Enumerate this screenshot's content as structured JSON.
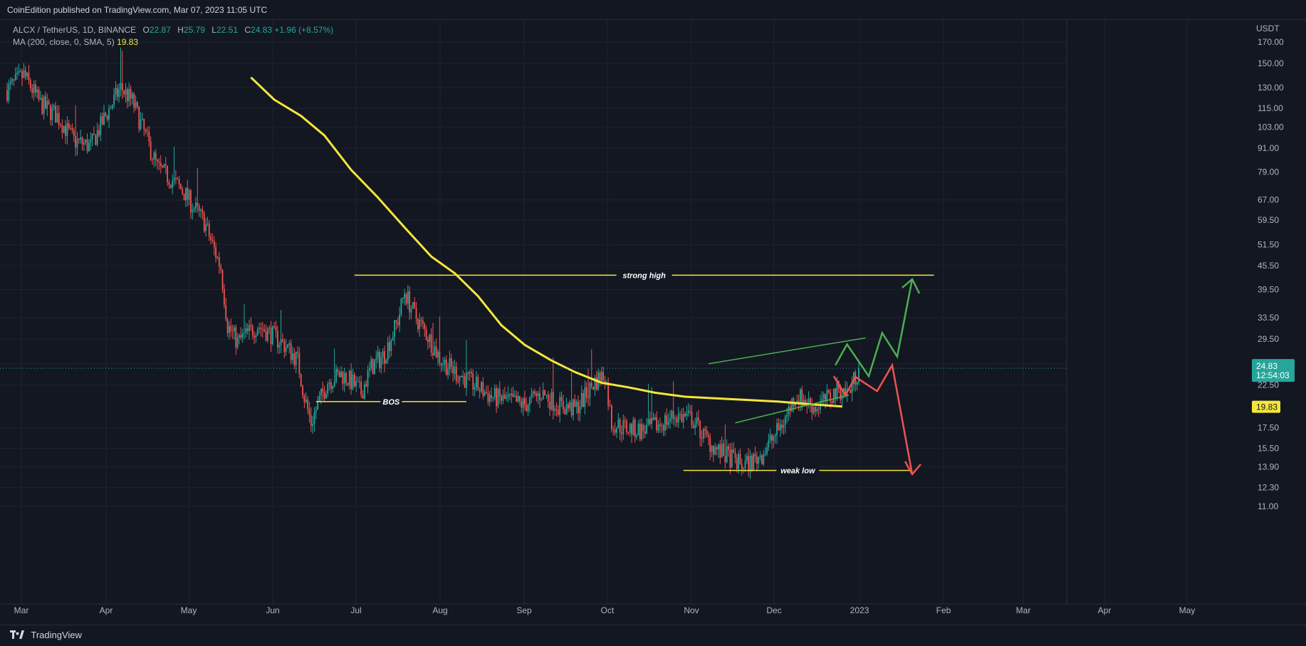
{
  "header": {
    "published": "CoinEdition published on TradingView.com, Mar 07, 2023 11:05 UTC"
  },
  "legend": {
    "symbol": "ALCX / TetherUS, 1D, BINANCE",
    "o_label": "O",
    "o": "22.87",
    "h_label": "H",
    "h": "25.79",
    "l_label": "L",
    "l": "22.51",
    "c_label": "C",
    "c": "24.83",
    "change": "+1.96 (+8.57%)",
    "ma_label": "MA (200, close, 0, SMA, 5)",
    "ma_value": "19.83"
  },
  "footer": {
    "brand": "TradingView"
  },
  "colors": {
    "background": "#131722",
    "up": "#26a69a",
    "down": "#ef5350",
    "ma": "#f5e63b",
    "level": "#f5e63b",
    "channel": "#4caf50",
    "arrow_up": "#4caf50",
    "arrow_down": "#ef5350"
  },
  "chart_data": {
    "type": "candlestick",
    "scale": "log",
    "y_unit": "USDT",
    "y_ticks": [
      170.0,
      150.0,
      130.0,
      115.0,
      103.0,
      91.0,
      79.0,
      67.0,
      59.5,
      51.5,
      45.5,
      39.5,
      33.5,
      29.5,
      25.5,
      22.5,
      17.5,
      15.5,
      13.9,
      12.3,
      11.0
    ],
    "x_ticks": [
      "Mar",
      "Apr",
      "May",
      "Jun",
      "Jul",
      "Aug",
      "Sep",
      "Oct",
      "Nov",
      "Dec",
      "2023",
      "Feb",
      "Mar",
      "Apr",
      "May"
    ],
    "last_price": "24.83",
    "countdown": "12:54:03",
    "ma_price": "19.83",
    "price_path": [
      [
        0,
        128
      ],
      [
        10,
        140
      ],
      [
        20,
        118
      ],
      [
        30,
        110
      ],
      [
        40,
        95
      ],
      [
        50,
        92
      ],
      [
        58,
        108
      ],
      [
        68,
        130
      ],
      [
        75,
        120
      ],
      [
        82,
        100
      ],
      [
        90,
        81
      ],
      [
        98,
        76
      ],
      [
        106,
        70
      ],
      [
        112,
        64
      ],
      [
        118,
        59
      ],
      [
        124,
        50
      ],
      [
        128,
        45
      ],
      [
        132,
        32
      ],
      [
        138,
        29
      ],
      [
        150,
        32
      ],
      [
        160,
        30
      ],
      [
        168,
        28
      ],
      [
        174,
        26
      ],
      [
        178,
        21
      ],
      [
        182,
        18
      ],
      [
        186,
        20
      ],
      [
        192,
        23
      ],
      [
        200,
        24
      ],
      [
        206,
        23
      ],
      [
        212,
        21.5
      ],
      [
        218,
        25
      ],
      [
        226,
        27
      ],
      [
        234,
        33
      ],
      [
        238,
        39
      ],
      [
        244,
        34
      ],
      [
        252,
        30
      ],
      [
        260,
        26
      ],
      [
        270,
        24
      ],
      [
        280,
        22.5
      ],
      [
        290,
        21
      ],
      [
        300,
        20.5
      ],
      [
        310,
        20
      ],
      [
        320,
        21.5
      ],
      [
        330,
        20
      ],
      [
        340,
        19.5
      ],
      [
        346,
        21
      ],
      [
        352,
        23
      ],
      [
        358,
        24
      ],
      [
        362,
        18
      ],
      [
        370,
        17.5
      ],
      [
        380,
        17.2
      ],
      [
        390,
        17.8
      ],
      [
        400,
        18.8
      ],
      [
        410,
        18.5
      ],
      [
        418,
        16.5
      ],
      [
        426,
        15.2
      ],
      [
        434,
        14.6
      ],
      [
        440,
        14.0
      ],
      [
        446,
        14.3
      ],
      [
        452,
        15.0
      ],
      [
        460,
        16.8
      ],
      [
        466,
        18.5
      ],
      [
        472,
        21.2
      ],
      [
        478,
        20.5
      ],
      [
        484,
        19.7
      ],
      [
        492,
        20.8
      ],
      [
        498,
        22.0
      ],
      [
        504,
        21.5
      ],
      [
        510,
        24.83
      ]
    ],
    "ma_path": [
      [
        146,
        138
      ],
      [
        160,
        121
      ],
      [
        176,
        110
      ],
      [
        190,
        98
      ],
      [
        206,
        80
      ],
      [
        222,
        68
      ],
      [
        238,
        57
      ],
      [
        254,
        48
      ],
      [
        268,
        43.5
      ],
      [
        282,
        38
      ],
      [
        296,
        32
      ],
      [
        310,
        28.5
      ],
      [
        326,
        26
      ],
      [
        340,
        24.3
      ],
      [
        356,
        22.8
      ],
      [
        372,
        22.2
      ],
      [
        388,
        21.5
      ],
      [
        406,
        21.0
      ],
      [
        424,
        20.8
      ],
      [
        444,
        20.6
      ],
      [
        462,
        20.4
      ],
      [
        480,
        20.1
      ],
      [
        500,
        19.83
      ]
    ],
    "annotations": [
      {
        "type": "hline",
        "label": "strong high",
        "value": 43.0,
        "x_from": 208,
        "x_to": 555
      },
      {
        "type": "hline",
        "label": "BOS",
        "value": 20.4,
        "x_from": 185,
        "x_to": 275
      },
      {
        "type": "hline",
        "label": "weak low",
        "value": 13.6,
        "x_from": 405,
        "x_to": 542
      },
      {
        "type": "channel",
        "upper": [
          [
            420,
            25.5
          ],
          [
            514,
            29.7
          ]
        ],
        "lower": [
          [
            436,
            18.0
          ],
          [
            504,
            21.2
          ]
        ]
      },
      {
        "type": "path",
        "color": "up",
        "points": [
          [
            496,
            25.3
          ],
          [
            503,
            28.6
          ],
          [
            516,
            23.7
          ],
          [
            524,
            30.6
          ],
          [
            533,
            26.6
          ],
          [
            542,
            42
          ],
          [
            537,
            40
          ]
        ]
      },
      {
        "type": "path",
        "color": "down",
        "points": [
          [
            495,
            23.7
          ],
          [
            502,
            21.2
          ],
          [
            508,
            23.6
          ],
          [
            521,
            21.7
          ],
          [
            530,
            25.3
          ],
          [
            542,
            13.3
          ]
        ]
      }
    ]
  }
}
